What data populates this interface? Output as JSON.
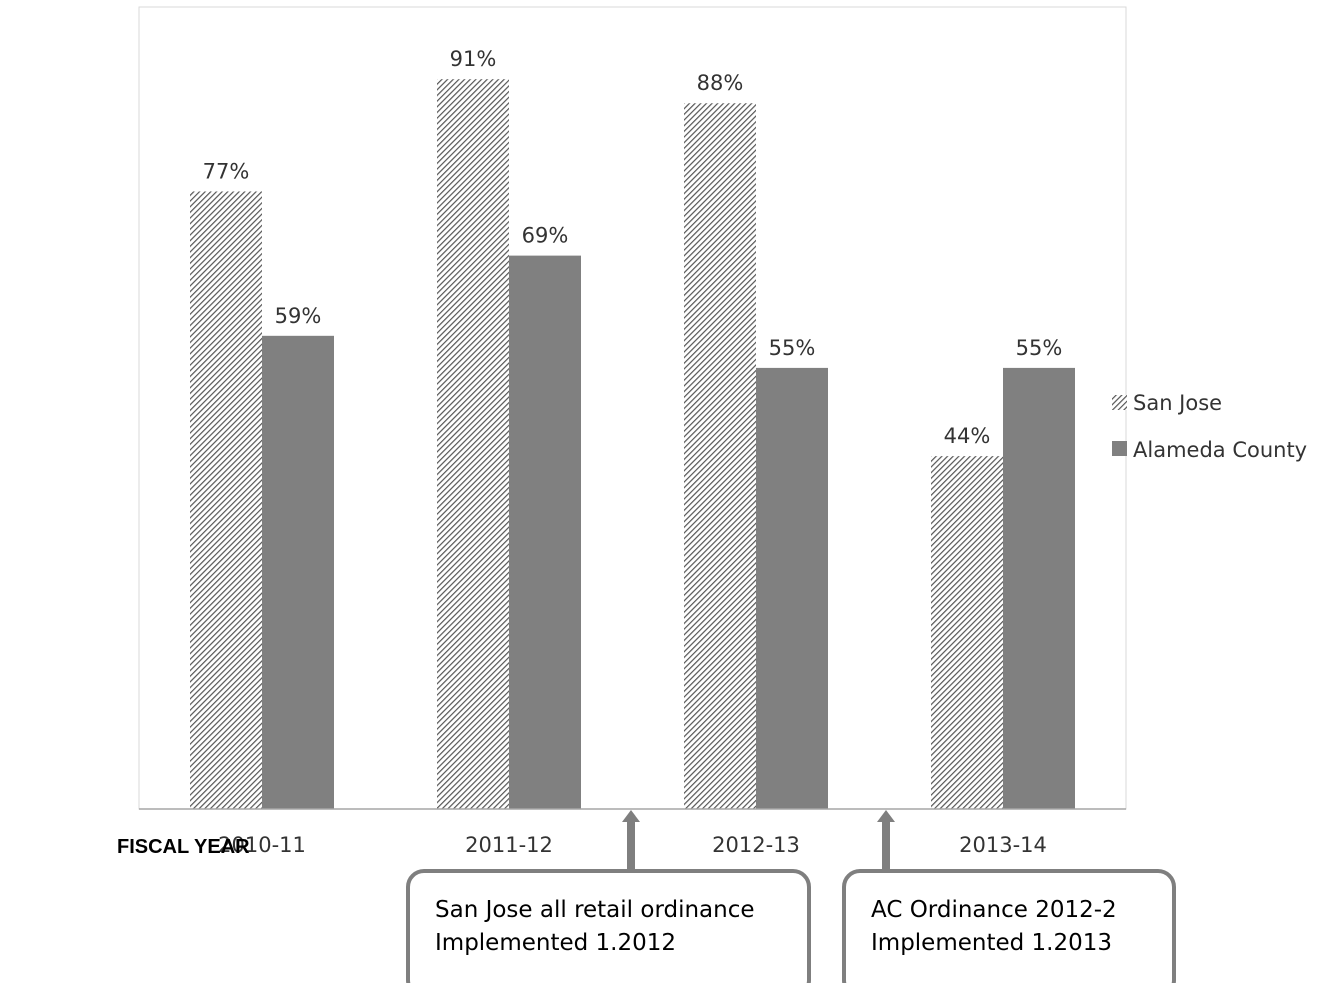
{
  "chart_data": {
    "type": "bar",
    "categories": [
      "2010-11",
      "2011-12",
      "2012-13",
      "2013-14"
    ],
    "series": [
      {
        "name": "San Jose",
        "values": [
          77,
          91,
          88,
          44
        ],
        "labels": [
          "77%",
          "91%",
          "88%",
          "44%"
        ],
        "pattern": "diagonal-hatch"
      },
      {
        "name": "Alameda County",
        "values": [
          59,
          69,
          55,
          55
        ],
        "labels": [
          "59%",
          "69%",
          "55%",
          "55%"
        ],
        "pattern": "solid"
      }
    ],
    "ylim": [
      0,
      100
    ],
    "xlabel": "FISCAL YEAR",
    "legend_position": "right",
    "grid": false,
    "annotations": [
      {
        "line1": "San Jose all retail ordinance",
        "line2": "Implemented 1.2012",
        "between": [
          "2011-12",
          "2012-13"
        ]
      },
      {
        "line1": "AC Ordinance 2012-2",
        "line2": "Implemented 1.2013",
        "between": [
          "2012-13",
          "2013-14"
        ]
      }
    ]
  },
  "colors": {
    "bar": "#808080",
    "hatch": "#555555",
    "box_border": "#7f7f7f",
    "arrow": "#7f7f7f"
  }
}
